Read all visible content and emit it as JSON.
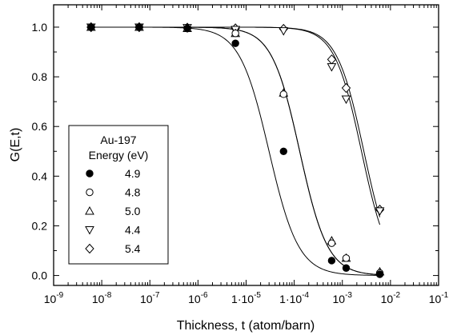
{
  "chart_data": {
    "type": "scatter",
    "title": "",
    "xlabel": "Thickness, t (atom/barn)",
    "ylabel": "G(E,t)",
    "x_scale": "log",
    "xlim": [
      1e-09,
      0.1
    ],
    "ylim": [
      -0.04,
      1.09
    ],
    "grid": false,
    "legend_position": "left",
    "legend_title": [
      "Au-197",
      "Energy (eV)"
    ],
    "x_ticks": [
      {
        "value": 1e-09,
        "mantissa": "",
        "base": "10",
        "exp": "-9"
      },
      {
        "value": 1e-08,
        "mantissa": "",
        "base": "10",
        "exp": "-8"
      },
      {
        "value": 1e-07,
        "mantissa": "",
        "base": "10",
        "exp": "-7"
      },
      {
        "value": 1e-06,
        "mantissa": "",
        "base": "10",
        "exp": "-6"
      },
      {
        "value": 1e-05,
        "mantissa": "1·",
        "base": "10",
        "exp": "-5"
      },
      {
        "value": 0.0001,
        "mantissa": "1·",
        "base": "10",
        "exp": "-4"
      },
      {
        "value": 0.001,
        "mantissa": "",
        "base": "10",
        "exp": "-3"
      },
      {
        "value": 0.01,
        "mantissa": "",
        "base": "10",
        "exp": "-2"
      },
      {
        "value": 0.1,
        "mantissa": "",
        "base": "10",
        "exp": "-1"
      }
    ],
    "y_ticks": [
      {
        "value": 0.0,
        "label": "0.0"
      },
      {
        "value": 0.2,
        "label": "0.2"
      },
      {
        "value": 0.4,
        "label": "0.4"
      },
      {
        "value": 0.6,
        "label": "0.6"
      },
      {
        "value": 0.8,
        "label": "0.8"
      },
      {
        "value": 1.0,
        "label": "1.0"
      }
    ],
    "series": [
      {
        "name": "4.9",
        "marker": "filled-circle",
        "x": [
          6e-09,
          6e-08,
          6e-07,
          6e-06,
          6e-05,
          0.0006,
          0.0012,
          0.006
        ],
        "y": [
          1.0,
          1.0,
          0.995,
          0.935,
          0.5,
          0.06,
          0.03,
          0.005
        ],
        "curve_t50": 3e-05,
        "curve_slope": 1.42
      },
      {
        "name": "4.8",
        "marker": "open-circle",
        "x": [
          6e-09,
          6e-08,
          6e-07,
          6e-06,
          6e-05,
          0.0006,
          0.0012,
          0.006
        ],
        "y": [
          1.0,
          1.0,
          0.995,
          0.975,
          0.73,
          0.13,
          0.07,
          0.01
        ],
        "curve_t50": 0.00013,
        "curve_slope": 1.5
      },
      {
        "name": "5.0",
        "marker": "triangle-up",
        "x": [
          6e-09,
          6e-08,
          6e-07,
          6e-06,
          6e-05,
          0.0006,
          0.0012,
          0.006
        ],
        "y": [
          1.0,
          1.0,
          0.995,
          0.975,
          0.735,
          0.14,
          0.07,
          0.015
        ],
        "curve_t50": 0.00013,
        "curve_slope": 1.5
      },
      {
        "name": "4.4",
        "marker": "triangle-down",
        "x": [
          6e-09,
          6e-08,
          6e-07,
          6e-06,
          6e-05,
          0.0006,
          0.0012,
          0.006
        ],
        "y": [
          1.0,
          1.0,
          0.998,
          0.99,
          0.985,
          0.84,
          0.71,
          0.26
        ],
        "curve_t50": 0.0025,
        "curve_slope": 1.55
      },
      {
        "name": "5.4",
        "marker": "diamond",
        "x": [
          6e-09,
          6e-08,
          6e-07,
          6e-06,
          6e-05,
          0.0006,
          0.0012,
          0.006
        ],
        "y": [
          1.0,
          1.0,
          0.998,
          0.995,
          0.993,
          0.87,
          0.755,
          0.265
        ],
        "curve_t50": 0.0028,
        "curve_slope": 1.55
      }
    ]
  }
}
